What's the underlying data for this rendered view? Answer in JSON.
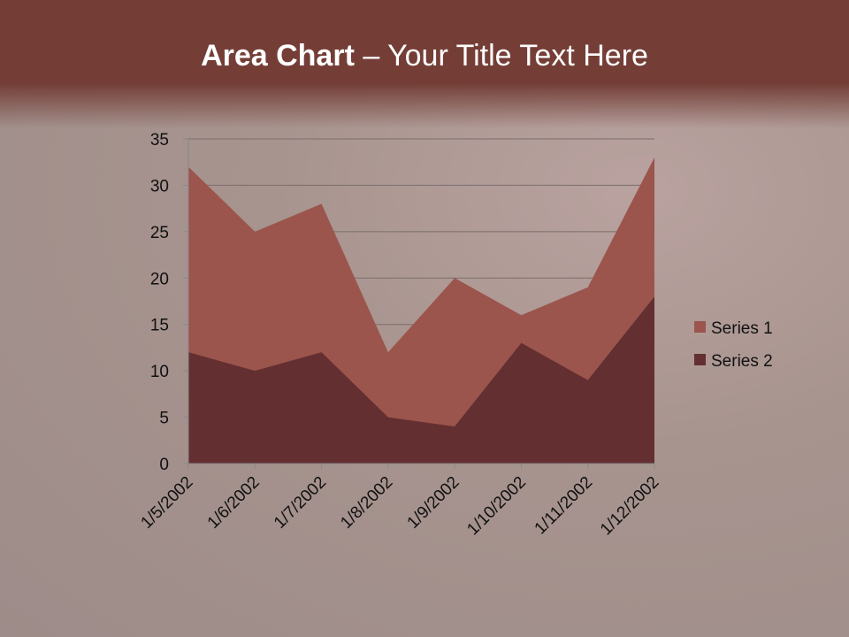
{
  "title": {
    "bold": "Area Chart",
    "rest": " – Your Title Text Here"
  },
  "chart_data": {
    "type": "area",
    "categories": [
      "1/5/2002",
      "1/6/2002",
      "1/7/2002",
      "1/8/2002",
      "1/9/2002",
      "1/10/2002",
      "1/11/2002",
      "1/12/2002"
    ],
    "series": [
      {
        "name": "Series 1",
        "values": [
          32,
          25,
          28,
          12,
          20,
          16,
          19,
          33
        ],
        "color": "#9b554c"
      },
      {
        "name": "Series 2",
        "values": [
          12,
          10,
          12,
          5,
          4,
          13,
          9,
          18
        ],
        "color": "#642f31"
      }
    ],
    "ylim": [
      0,
      35
    ],
    "yticks": [
      0,
      5,
      10,
      15,
      20,
      25,
      30,
      35
    ],
    "grid": true,
    "legend": "right"
  }
}
